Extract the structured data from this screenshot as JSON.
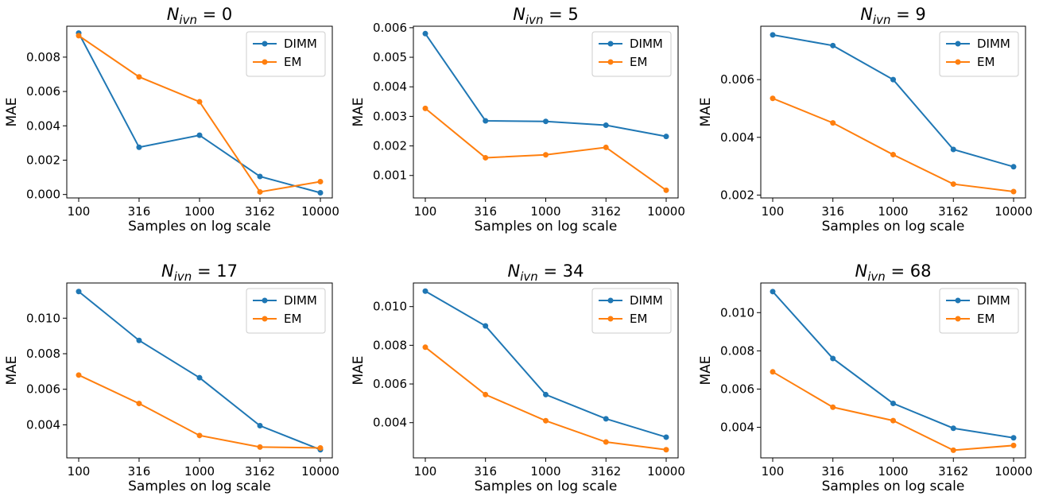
{
  "chart_data": [
    {
      "type": "line",
      "title": "N_ivn = 0",
      "title_main": "N",
      "title_sub": "ivn",
      "title_rest": " = 0",
      "xlabel": "Samples on log scale",
      "ylabel": "MAE",
      "x_scale": "log",
      "x": [
        100,
        316,
        1000,
        3162,
        10000
      ],
      "x_tick_labels": [
        "100",
        "316",
        "1000",
        "3162",
        "10000"
      ],
      "ylim": [
        -0.0002,
        0.0098
      ],
      "y_ticks": [
        0.0,
        0.002,
        0.004,
        0.006,
        0.008
      ],
      "y_tick_labels": [
        "0.000",
        "0.002",
        "0.004",
        "0.006",
        "0.008"
      ],
      "legend": "top-right",
      "grid": false,
      "series": [
        {
          "name": "DIMM",
          "color": "#1f77b4",
          "values": [
            0.0094,
            0.00275,
            0.00345,
            0.00105,
            0.0001
          ]
        },
        {
          "name": "EM",
          "color": "#ff7f0e",
          "values": [
            0.00925,
            0.00685,
            0.0054,
            0.00015,
            0.00075
          ]
        }
      ]
    },
    {
      "type": "line",
      "title": "N_ivn = 5",
      "title_main": "N",
      "title_sub": "ivn",
      "title_rest": " = 5",
      "xlabel": "Samples on log scale",
      "ylabel": "MAE",
      "x_scale": "log",
      "x": [
        100,
        316,
        1000,
        3162,
        10000
      ],
      "x_tick_labels": [
        "100",
        "316",
        "1000",
        "3162",
        "10000"
      ],
      "ylim": [
        0.00024,
        0.00605
      ],
      "y_ticks": [
        0.001,
        0.002,
        0.003,
        0.004,
        0.005,
        0.006
      ],
      "y_tick_labels": [
        "0.001",
        "0.002",
        "0.003",
        "0.004",
        "0.005",
        "0.006"
      ],
      "legend": "top-right",
      "grid": false,
      "series": [
        {
          "name": "DIMM",
          "color": "#1f77b4",
          "values": [
            0.0058,
            0.00285,
            0.00283,
            0.0027,
            0.00232
          ]
        },
        {
          "name": "EM",
          "color": "#ff7f0e",
          "values": [
            0.00327,
            0.0016,
            0.0017,
            0.00195,
            0.0005
          ]
        }
      ]
    },
    {
      "type": "line",
      "title": "N_ivn = 9",
      "title_main": "N",
      "title_sub": "ivn",
      "title_rest": " = 9",
      "xlabel": "Samples on log scale",
      "ylabel": "MAE",
      "x_scale": "log",
      "x": [
        100,
        316,
        1000,
        3162,
        10000
      ],
      "x_tick_labels": [
        "100",
        "316",
        "1000",
        "3162",
        "10000"
      ],
      "ylim": [
        0.0019,
        0.00785
      ],
      "y_ticks": [
        0.002,
        0.004,
        0.006
      ],
      "y_tick_labels": [
        "0.002",
        "0.004",
        "0.006"
      ],
      "legend": "top-right",
      "grid": false,
      "series": [
        {
          "name": "DIMM",
          "color": "#1f77b4",
          "values": [
            0.00755,
            0.00718,
            0.006,
            0.00358,
            0.00298
          ]
        },
        {
          "name": "EM",
          "color": "#ff7f0e",
          "values": [
            0.00535,
            0.0045,
            0.0034,
            0.00238,
            0.00212
          ]
        }
      ]
    },
    {
      "type": "line",
      "title": "N_ivn = 17",
      "title_main": "N",
      "title_sub": "ivn",
      "title_rest": " = 17",
      "xlabel": "Samples on log scale",
      "ylabel": "MAE",
      "x_scale": "log",
      "x": [
        100,
        316,
        1000,
        3162,
        10000
      ],
      "x_tick_labels": [
        "100",
        "316",
        "1000",
        "3162",
        "10000"
      ],
      "ylim": [
        0.00214,
        0.01198
      ],
      "y_ticks": [
        0.004,
        0.006,
        0.008,
        0.01
      ],
      "y_tick_labels": [
        "0.004",
        "0.006",
        "0.008",
        "0.010"
      ],
      "legend": "top-right",
      "grid": false,
      "series": [
        {
          "name": "DIMM",
          "color": "#1f77b4",
          "values": [
            0.0115,
            0.00875,
            0.00665,
            0.00395,
            0.0026
          ]
        },
        {
          "name": "EM",
          "color": "#ff7f0e",
          "values": [
            0.0068,
            0.0052,
            0.0034,
            0.00275,
            0.0027
          ]
        }
      ]
    },
    {
      "type": "line",
      "title": "N_ivn = 34",
      "title_main": "N",
      "title_sub": "ivn",
      "title_rest": " = 34",
      "xlabel": "Samples on log scale",
      "ylabel": "MAE",
      "x_scale": "log",
      "x": [
        100,
        316,
        1000,
        3162,
        10000
      ],
      "x_tick_labels": [
        "100",
        "316",
        "1000",
        "3162",
        "10000"
      ],
      "ylim": [
        0.00218,
        0.01122
      ],
      "y_ticks": [
        0.004,
        0.006,
        0.008,
        0.01
      ],
      "y_tick_labels": [
        "0.004",
        "0.006",
        "0.008",
        "0.010"
      ],
      "legend": "top-right",
      "grid": false,
      "series": [
        {
          "name": "DIMM",
          "color": "#1f77b4",
          "values": [
            0.0108,
            0.009,
            0.00545,
            0.0042,
            0.00325
          ]
        },
        {
          "name": "EM",
          "color": "#ff7f0e",
          "values": [
            0.0079,
            0.00545,
            0.0041,
            0.003,
            0.0026
          ]
        }
      ]
    },
    {
      "type": "line",
      "title": "N_ivn = 68",
      "title_main": "N",
      "title_sub": "ivn",
      "title_rest": " = 68",
      "xlabel": "Samples on log scale",
      "ylabel": "MAE",
      "x_scale": "log",
      "x": [
        100,
        316,
        1000,
        3162,
        10000
      ],
      "x_tick_labels": [
        "100",
        "316",
        "1000",
        "3162",
        "10000"
      ],
      "ylim": [
        0.0024,
        0.01155
      ],
      "y_ticks": [
        0.004,
        0.006,
        0.008,
        0.01
      ],
      "y_tick_labels": [
        "0.004",
        "0.006",
        "0.008",
        "0.010"
      ],
      "legend": "top-right",
      "grid": false,
      "series": [
        {
          "name": "DIMM",
          "color": "#1f77b4",
          "values": [
            0.0111,
            0.0076,
            0.00525,
            0.00395,
            0.00345
          ]
        },
        {
          "name": "EM",
          "color": "#ff7f0e",
          "values": [
            0.0069,
            0.00505,
            0.00435,
            0.0028,
            0.00305
          ]
        }
      ]
    }
  ]
}
